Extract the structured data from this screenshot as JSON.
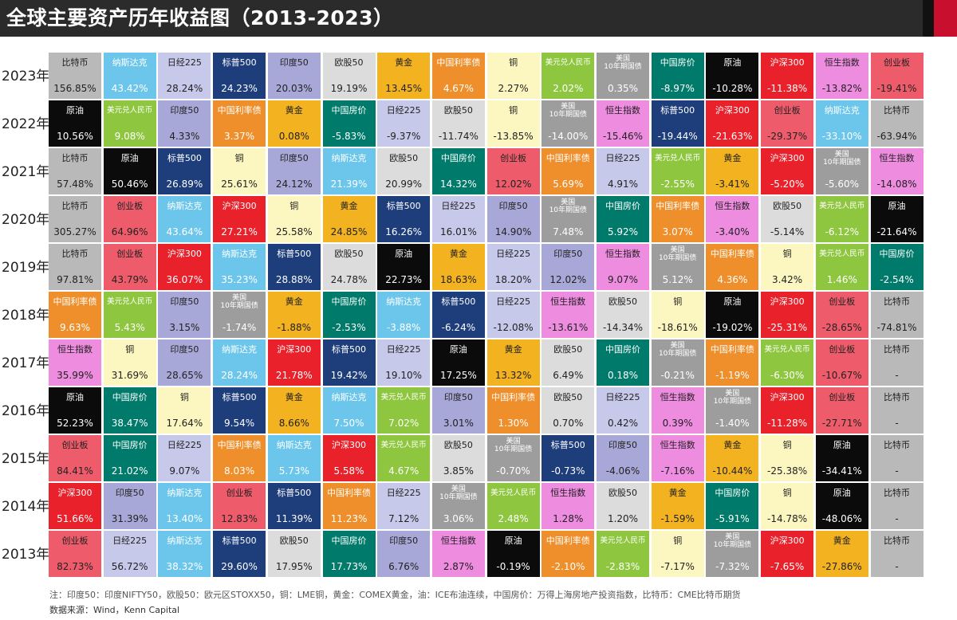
{
  "header": {
    "title": "全球主要资产历年收益图（2013-2023）"
  },
  "legend": {
    "colors": {
      "比特币": "#b9b9b9",
      "纳斯达克": "#6cc6ec",
      "日经225": "#c7c9ea",
      "标普500": "#1e3d7b",
      "印度50": "#a8a8d8",
      "欧股50": "#dcdcdc",
      "黄金": "#f3b21f",
      "中国利率债": "#ef8f2b",
      "铜": "#fcf6c0",
      "美元兑人民币": "#8ec63f",
      "美国10年期国债": "#9d9d9d",
      "中国房价": "#007a6a",
      "原油": "#0b0b0b",
      "沪深300": "#e8212b",
      "恒生指数": "#ee8ce0",
      "创业板": "#ee5c6b"
    },
    "text_colors": {
      "比特币": "#222222",
      "纳斯达克": "#ffffff",
      "日经225": "#222222",
      "标普500": "#ffffff",
      "印度50": "#222222",
      "欧股50": "#222222",
      "黄金": "#222222",
      "中国利率债": "#ffffff",
      "铜": "#222222",
      "美元兑人民币": "#ffffff",
      "美国10年期国债": "#ffffff",
      "中国房价": "#ffffff",
      "原油": "#ffffff",
      "沪深300": "#ffffff",
      "恒生指数": "#222222",
      "创业板": "#222222"
    }
  },
  "chart_data": {
    "type": "table",
    "title": "全球主要资产历年收益图（2013-2023）",
    "years": [
      "2023年",
      "2022年",
      "2021年",
      "2020年",
      "2019年",
      "2018年",
      "2017年",
      "2016年",
      "2015年",
      "2014年",
      "2013年"
    ],
    "rows": [
      [
        {
          "name": "比特币",
          "value": "156.85%"
        },
        {
          "name": "纳斯达克",
          "value": "43.42%"
        },
        {
          "name": "日经225",
          "value": "28.24%"
        },
        {
          "name": "标普500",
          "value": "24.23%"
        },
        {
          "name": "印度50",
          "value": "20.03%"
        },
        {
          "name": "欧股50",
          "value": "19.19%"
        },
        {
          "name": "黄金",
          "value": "13.45%"
        },
        {
          "name": "中国利率债",
          "value": "4.67%"
        },
        {
          "name": "铜",
          "value": "2.27%"
        },
        {
          "name": "美元兑人民币",
          "value": "2.02%"
        },
        {
          "name": "美国10年期国债",
          "value": "0.35%"
        },
        {
          "name": "中国房价",
          "value": "-8.97%"
        },
        {
          "name": "原油",
          "value": "-10.28%"
        },
        {
          "name": "沪深300",
          "value": "-11.38%"
        },
        {
          "name": "恒生指数",
          "value": "-13.82%"
        },
        {
          "name": "创业板",
          "value": "-19.41%"
        }
      ],
      [
        {
          "name": "原油",
          "value": "10.56%"
        },
        {
          "name": "美元兑人民币",
          "value": "9.08%"
        },
        {
          "name": "印度50",
          "value": "4.33%"
        },
        {
          "name": "中国利率债",
          "value": "3.37%"
        },
        {
          "name": "黄金",
          "value": "0.08%"
        },
        {
          "name": "中国房价",
          "value": "-5.83%"
        },
        {
          "name": "日经225",
          "value": "-9.37%"
        },
        {
          "name": "欧股50",
          "value": "-11.74%"
        },
        {
          "name": "铜",
          "value": "-13.85%"
        },
        {
          "name": "美国10年期国债",
          "value": "-14.00%"
        },
        {
          "name": "恒生指数",
          "value": "-15.46%"
        },
        {
          "name": "标普500",
          "value": "-19.44%"
        },
        {
          "name": "沪深300",
          "value": "-21.63%"
        },
        {
          "name": "创业板",
          "value": "-29.37%"
        },
        {
          "name": "纳斯达克",
          "value": "-33.10%"
        },
        {
          "name": "比特币",
          "value": "-63.94%"
        }
      ],
      [
        {
          "name": "比特币",
          "value": "57.48%"
        },
        {
          "name": "原油",
          "value": "50.46%"
        },
        {
          "name": "标普500",
          "value": "26.89%"
        },
        {
          "name": "铜",
          "value": "25.61%"
        },
        {
          "name": "印度50",
          "value": "24.12%"
        },
        {
          "name": "纳斯达克",
          "value": "21.39%"
        },
        {
          "name": "欧股50",
          "value": "20.99%"
        },
        {
          "name": "中国房价",
          "value": "14.32%"
        },
        {
          "name": "创业板",
          "value": "12.02%"
        },
        {
          "name": "中国利率债",
          "value": "5.69%"
        },
        {
          "name": "日经225",
          "value": "4.91%"
        },
        {
          "name": "美元兑人民币",
          "value": "-2.55%"
        },
        {
          "name": "黄金",
          "value": "-3.41%"
        },
        {
          "name": "沪深300",
          "value": "-5.20%"
        },
        {
          "name": "美国10年期国债",
          "value": "-5.60%"
        },
        {
          "name": "恒生指数",
          "value": "-14.08%"
        }
      ],
      [
        {
          "name": "比特币",
          "value": "305.27%"
        },
        {
          "name": "创业板",
          "value": "64.96%"
        },
        {
          "name": "纳斯达克",
          "value": "43.64%"
        },
        {
          "name": "沪深300",
          "value": "27.21%"
        },
        {
          "name": "铜",
          "value": "25.58%"
        },
        {
          "name": "黄金",
          "value": "24.85%"
        },
        {
          "name": "标普500",
          "value": "16.26%"
        },
        {
          "name": "日经225",
          "value": "16.01%"
        },
        {
          "name": "印度50",
          "value": "14.90%"
        },
        {
          "name": "美国10年期国债",
          "value": "7.48%"
        },
        {
          "name": "中国房价",
          "value": "5.92%"
        },
        {
          "name": "中国利率债",
          "value": "3.07%"
        },
        {
          "name": "恒生指数",
          "value": "-3.40%"
        },
        {
          "name": "欧股50",
          "value": "-5.14%"
        },
        {
          "name": "美元兑人民币",
          "value": "-6.12%"
        },
        {
          "name": "原油",
          "value": "-21.64%"
        }
      ],
      [
        {
          "name": "比特币",
          "value": "97.81%"
        },
        {
          "name": "创业板",
          "value": "43.79%"
        },
        {
          "name": "沪深300",
          "value": "36.07%"
        },
        {
          "name": "纳斯达克",
          "value": "35.23%"
        },
        {
          "name": "标普500",
          "value": "28.88%"
        },
        {
          "name": "欧股50",
          "value": "24.78%"
        },
        {
          "name": "原油",
          "value": "22.73%"
        },
        {
          "name": "黄金",
          "value": "18.63%"
        },
        {
          "name": "日经225",
          "value": "18.20%"
        },
        {
          "name": "印度50",
          "value": "12.02%"
        },
        {
          "name": "恒生指数",
          "value": "9.07%"
        },
        {
          "name": "美国10年期国债",
          "value": "5.12%"
        },
        {
          "name": "中国利率债",
          "value": "4.36%"
        },
        {
          "name": "铜",
          "value": "3.42%"
        },
        {
          "name": "美元兑人民币",
          "value": "1.46%"
        },
        {
          "name": "中国房价",
          "value": "-2.54%"
        }
      ],
      [
        {
          "name": "中国利率债",
          "value": "9.63%"
        },
        {
          "name": "美元兑人民币",
          "value": "5.43%"
        },
        {
          "name": "印度50",
          "value": "3.15%"
        },
        {
          "name": "美国10年期国债",
          "value": "-1.74%"
        },
        {
          "name": "黄金",
          "value": "-1.88%"
        },
        {
          "name": "中国房价",
          "value": "-2.53%"
        },
        {
          "name": "纳斯达克",
          "value": "-3.88%"
        },
        {
          "name": "标普500",
          "value": "-6.24%"
        },
        {
          "name": "日经225",
          "value": "-12.08%"
        },
        {
          "name": "恒生指数",
          "value": "-13.61%"
        },
        {
          "name": "欧股50",
          "value": "-14.34%"
        },
        {
          "name": "铜",
          "value": "-18.61%"
        },
        {
          "name": "原油",
          "value": "-19.02%"
        },
        {
          "name": "沪深300",
          "value": "-25.31%"
        },
        {
          "name": "创业板",
          "value": "-28.65%"
        },
        {
          "name": "比特币",
          "value": "-74.81%"
        }
      ],
      [
        {
          "name": "恒生指数",
          "value": "35.99%"
        },
        {
          "name": "铜",
          "value": "31.69%"
        },
        {
          "name": "印度50",
          "value": "28.65%"
        },
        {
          "name": "纳斯达克",
          "value": "28.24%"
        },
        {
          "name": "沪深300",
          "value": "21.78%"
        },
        {
          "name": "标普500",
          "value": "19.42%"
        },
        {
          "name": "日经225",
          "value": "19.10%"
        },
        {
          "name": "原油",
          "value": "17.25%"
        },
        {
          "name": "黄金",
          "value": "13.32%"
        },
        {
          "name": "欧股50",
          "value": "6.49%"
        },
        {
          "name": "中国房价",
          "value": "0.18%"
        },
        {
          "name": "美国10年期国债",
          "value": "-0.21%"
        },
        {
          "name": "中国利率债",
          "value": "-1.19%"
        },
        {
          "name": "美元兑人民币",
          "value": "-6.30%"
        },
        {
          "name": "创业板",
          "value": "-10.67%"
        },
        {
          "name": "比特币",
          "value": "-"
        }
      ],
      [
        {
          "name": "原油",
          "value": "52.23%"
        },
        {
          "name": "中国房价",
          "value": "38.47%"
        },
        {
          "name": "铜",
          "value": "17.64%"
        },
        {
          "name": "标普500",
          "value": "9.54%"
        },
        {
          "name": "黄金",
          "value": "8.66%"
        },
        {
          "name": "纳斯达克",
          "value": "7.50%"
        },
        {
          "name": "美元兑人民币",
          "value": "7.02%"
        },
        {
          "name": "印度50",
          "value": "3.01%"
        },
        {
          "name": "中国利率债",
          "value": "1.30%"
        },
        {
          "name": "欧股50",
          "value": "0.70%"
        },
        {
          "name": "日经225",
          "value": "0.42%"
        },
        {
          "name": "恒生指数",
          "value": "0.39%"
        },
        {
          "name": "美国10年期国债",
          "value": "-1.40%"
        },
        {
          "name": "沪深300",
          "value": "-11.28%"
        },
        {
          "name": "创业板",
          "value": "-27.71%"
        },
        {
          "name": "比特币",
          "value": "-"
        }
      ],
      [
        {
          "name": "创业板",
          "value": "84.41%"
        },
        {
          "name": "中国房价",
          "value": "21.02%"
        },
        {
          "name": "日经225",
          "value": "9.07%"
        },
        {
          "name": "中国利率债",
          "value": "8.03%"
        },
        {
          "name": "纳斯达克",
          "value": "5.73%"
        },
        {
          "name": "沪深300",
          "value": "5.58%"
        },
        {
          "name": "美元兑人民币",
          "value": "4.67%"
        },
        {
          "name": "欧股50",
          "value": "3.85%"
        },
        {
          "name": "美国10年期国债",
          "value": "-0.70%"
        },
        {
          "name": "标普500",
          "value": "-0.73%"
        },
        {
          "name": "印度50",
          "value": "-4.06%"
        },
        {
          "name": "恒生指数",
          "value": "-7.16%"
        },
        {
          "name": "黄金",
          "value": "-10.44%"
        },
        {
          "name": "铜",
          "value": "-25.38%"
        },
        {
          "name": "原油",
          "value": "-34.41%"
        },
        {
          "name": "比特币",
          "value": "-"
        }
      ],
      [
        {
          "name": "沪深300",
          "value": "51.66%"
        },
        {
          "name": "印度50",
          "value": "31.39%"
        },
        {
          "name": "纳斯达克",
          "value": "13.40%"
        },
        {
          "name": "创业板",
          "value": "12.83%"
        },
        {
          "name": "标普500",
          "value": "11.39%"
        },
        {
          "name": "中国利率债",
          "value": "11.23%"
        },
        {
          "name": "日经225",
          "value": "7.12%"
        },
        {
          "name": "美国10年期国债",
          "value": "3.06%"
        },
        {
          "name": "美元兑人民币",
          "value": "2.48%"
        },
        {
          "name": "恒生指数",
          "value": "1.28%"
        },
        {
          "name": "欧股50",
          "value": "1.20%"
        },
        {
          "name": "黄金",
          "value": "-1.59%"
        },
        {
          "name": "中国房价",
          "value": "-5.91%"
        },
        {
          "name": "铜",
          "value": "-14.78%"
        },
        {
          "name": "原油",
          "value": "-48.06%"
        },
        {
          "name": "比特币",
          "value": "-"
        }
      ],
      [
        {
          "name": "创业板",
          "value": "82.73%"
        },
        {
          "name": "日经225",
          "value": "56.72%"
        },
        {
          "name": "纳斯达克",
          "value": "38.32%"
        },
        {
          "name": "标普500",
          "value": "29.60%"
        },
        {
          "name": "欧股50",
          "value": "17.95%"
        },
        {
          "name": "中国房价",
          "value": "17.73%"
        },
        {
          "name": "印度50",
          "value": "6.76%"
        },
        {
          "name": "恒生指数",
          "value": "2.87%"
        },
        {
          "name": "原油",
          "value": "-0.19%"
        },
        {
          "name": "中国利率债",
          "value": "-2.10%"
        },
        {
          "name": "美元兑人民币",
          "value": "-2.83%"
        },
        {
          "name": "铜",
          "value": "-7.17%"
        },
        {
          "name": "美国10年期国债",
          "value": "-7.32%"
        },
        {
          "name": "沪深300",
          "value": "-7.65%"
        },
        {
          "name": "黄金",
          "value": "-27.86%"
        },
        {
          "name": "比特币",
          "value": "-"
        }
      ]
    ]
  },
  "footer": {
    "note": "注：印度50：印度NIFTY50，欧股50：欧元区STOXX50，铜：LME铜，黄金：COMEX黄金，油：ICE布油连续，中国房价：万得上海房地产投资指数，比特币：CME比特币期货",
    "source": "数据来源：Wind，Kenn Capital"
  }
}
